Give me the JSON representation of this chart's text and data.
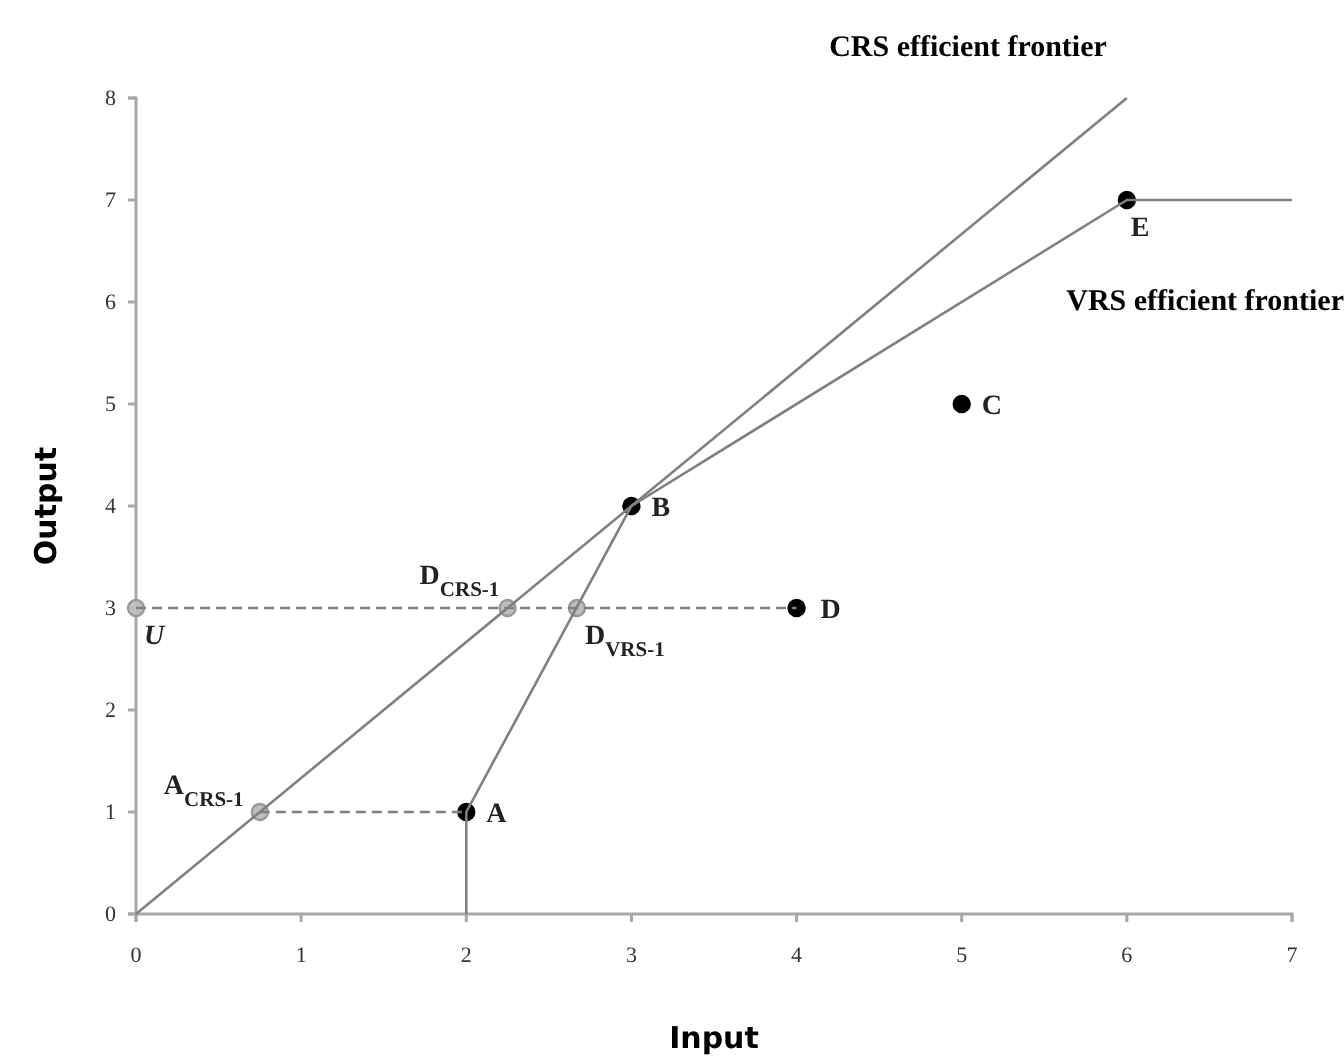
{
  "chart_data": {
    "type": "line",
    "xlabel": "Input",
    "ylabel": "Output",
    "xlim": [
      0,
      7
    ],
    "ylim": [
      0,
      8
    ],
    "xticks": [
      0,
      1,
      2,
      3,
      4,
      5,
      6,
      7
    ],
    "yticks": [
      0,
      1,
      2,
      3,
      4,
      5,
      6,
      7,
      8
    ],
    "grid": false,
    "legend": false,
    "series": [
      {
        "name": "CRS efficient frontier",
        "color": "#808080",
        "x": [
          0,
          6
        ],
        "values": [
          0,
          8
        ]
      },
      {
        "name": "VRS efficient frontier",
        "color": "#808080",
        "x": [
          2,
          2,
          3,
          6,
          7
        ],
        "values": [
          0,
          1,
          4,
          7,
          7
        ]
      },
      {
        "color": "#808080",
        "line_style": "dashed",
        "x": [
          0,
          4
        ],
        "values": [
          3,
          3
        ]
      },
      {
        "color": "#808080",
        "line_style": "dashed",
        "x": [
          0.75,
          2
        ],
        "values": [
          1,
          1
        ]
      },
      {
        "type": "scatter",
        "color": "#000000",
        "marker": "circle",
        "x": [
          2,
          3,
          5,
          4,
          6
        ],
        "values": [
          1,
          4,
          5,
          3,
          7
        ]
      },
      {
        "type": "scatter",
        "color": "#bebebe",
        "marker": "circle",
        "x": [
          0,
          2.25,
          2.67,
          0.75
        ],
        "values": [
          3,
          3,
          3,
          1
        ]
      }
    ],
    "annotations": [
      {
        "text": "A",
        "x": 2,
        "y": 1
      },
      {
        "text": "B",
        "x": 3,
        "y": 4
      },
      {
        "text": "C",
        "x": 5,
        "y": 5
      },
      {
        "text": "D",
        "x": 4,
        "y": 3
      },
      {
        "text": "E",
        "x": 6,
        "y": 7
      },
      {
        "text": "U",
        "x": 0,
        "y": 3
      },
      {
        "text": "D$_{CRS-1}$",
        "x": 2.25,
        "y": 3
      },
      {
        "text": "D$_{VRS-1}$",
        "x": 2.67,
        "y": 3
      },
      {
        "text": "A$_{CRS-1}$",
        "x": 0.75,
        "y": 1
      }
    ]
  }
}
